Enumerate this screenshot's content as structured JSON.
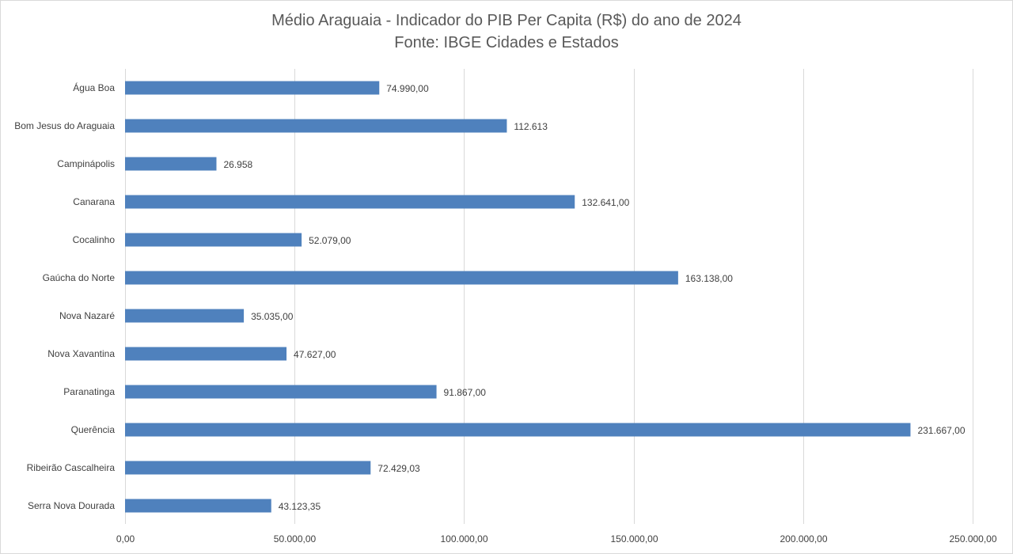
{
  "chart_data": {
    "type": "bar",
    "orientation": "horizontal",
    "title": "Médio Araguaia - Indicador do PIB Per Capita (R$) do ano de 2024",
    "subtitle": "Fonte: IBGE Cidades e Estados",
    "categories": [
      "Água Boa",
      "Bom Jesus do Araguaia",
      "Campinápolis",
      "Canarana",
      "Cocalinho",
      "Gaúcha do Norte",
      "Nova Nazaré",
      "Nova Xavantina",
      "Paranatinga",
      "Querência",
      "Ribeirão Cascalheira",
      "Serra Nova Dourada"
    ],
    "values": [
      74990.0,
      112613,
      26958,
      132641.0,
      52079.0,
      163138.0,
      35035.0,
      47627.0,
      91867.0,
      231667.0,
      72429.03,
      43123.35
    ],
    "data_labels": [
      "74.990,00",
      "112.613",
      "26.958",
      "132.641,00",
      "52.079,00",
      "163.138,00",
      "35.035,00",
      "47.627,00",
      "91.867,00",
      "231.667,00",
      "72.429,03",
      "43.123,35"
    ],
    "xlim": [
      0,
      250000
    ],
    "x_ticks": [
      0,
      50000,
      100000,
      150000,
      200000,
      250000
    ],
    "x_tick_labels": [
      "0,00",
      "50.000,00",
      "100.000,00",
      "150.000,00",
      "200.000,00",
      "250.000,00"
    ],
    "grid": true,
    "legend": "none",
    "bar_color": "#4f81bd",
    "grid_color": "#d9d9d9"
  }
}
